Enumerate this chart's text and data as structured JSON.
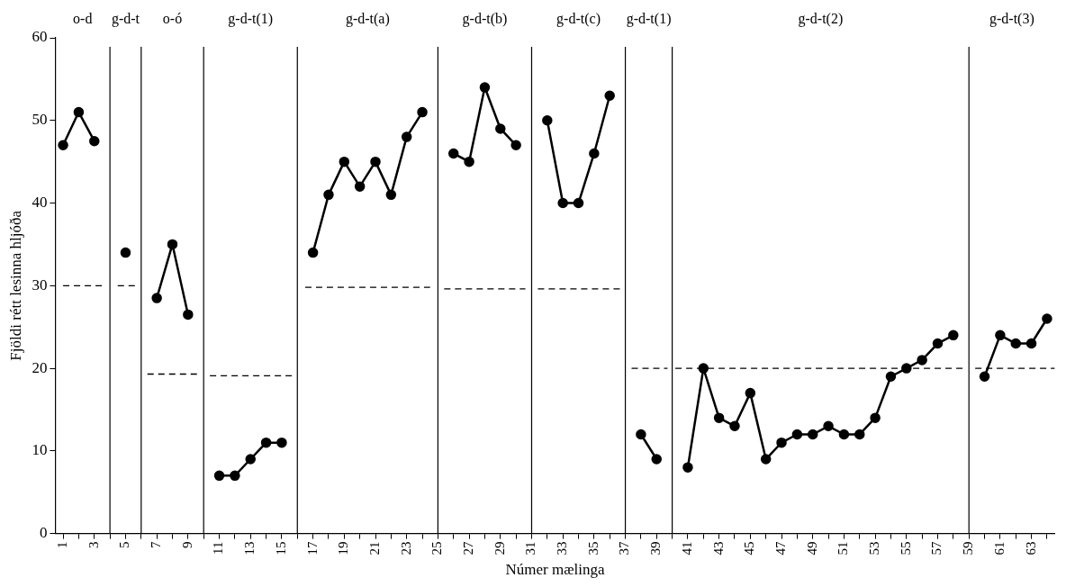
{
  "chart_data": {
    "type": "line",
    "xlabel": "Númer mælinga",
    "ylabel": "Fjöldi rétt lesinna hljóða",
    "xlim": [
      0.5,
      64.5
    ],
    "xticks": [
      1,
      {
        "value": 2,
        "label": null
      },
      3,
      {
        "value": 4,
        "label": null
      },
      5,
      {
        "value": 6,
        "label": null
      },
      7,
      {
        "value": 8,
        "label": null
      },
      9,
      {
        "value": 10,
        "label": null
      },
      11,
      {
        "value": 12,
        "label": null
      },
      13,
      {
        "value": 14,
        "label": null
      },
      15,
      {
        "value": 16,
        "label": null
      },
      17,
      {
        "value": 18,
        "label": null
      },
      19,
      {
        "value": 20,
        "label": null
      },
      21,
      {
        "value": 22,
        "label": null
      },
      23,
      {
        "value": 24,
        "label": null
      },
      25,
      {
        "value": 26,
        "label": null
      },
      27,
      {
        "value": 28,
        "label": null
      },
      29,
      {
        "value": 30,
        "label": null
      },
      31,
      {
        "value": 32,
        "label": null
      },
      33,
      {
        "value": 34,
        "label": null
      },
      35,
      {
        "value": 36,
        "label": null
      },
      37,
      {
        "value": 38,
        "label": null
      },
      39,
      {
        "value": 40,
        "label": null
      },
      41,
      {
        "value": 42,
        "label": null
      },
      43,
      {
        "value": 44,
        "label": null
      },
      45,
      {
        "value": 46,
        "label": null
      },
      47,
      {
        "value": 48,
        "label": null
      },
      49,
      {
        "value": 50,
        "label": null
      },
      51,
      {
        "value": 52,
        "label": null
      },
      53,
      {
        "value": 54,
        "label": null
      },
      55,
      {
        "value": 56,
        "label": null
      },
      57,
      {
        "value": 58,
        "label": null
      },
      59,
      {
        "value": 60,
        "label": null
      },
      61,
      {
        "value": 62,
        "label": null
      },
      63,
      {
        "value": 64,
        "label": null
      }
    ],
    "ylim": [
      0,
      60
    ],
    "yticks": [
      0,
      10,
      20,
      30,
      40,
      50,
      60
    ],
    "grid": false,
    "legend": false,
    "marker": "circle",
    "line_style": "solid",
    "series": [
      {
        "color": "#000000",
        "x": [
          1,
          2,
          3
        ],
        "values": [
          47,
          51,
          47.5
        ]
      },
      {
        "color": "#000000",
        "x": [
          5
        ],
        "values": [
          34
        ]
      },
      {
        "color": "#000000",
        "x": [
          7,
          8,
          9
        ],
        "values": [
          28.5,
          35,
          26.5
        ]
      },
      {
        "color": "#000000",
        "x": [
          11,
          12,
          13,
          14,
          15
        ],
        "values": [
          7,
          7,
          9,
          11,
          11
        ]
      },
      {
        "color": "#000000",
        "x": [
          17,
          18,
          19,
          20,
          21,
          22,
          23,
          24
        ],
        "values": [
          34,
          41,
          45,
          42,
          45,
          41,
          48,
          51
        ]
      },
      {
        "color": "#000000",
        "x": [
          26,
          27,
          28,
          29,
          30
        ],
        "values": [
          46,
          45,
          54,
          49,
          47
        ]
      },
      {
        "color": "#000000",
        "x": [
          32,
          33,
          34,
          35,
          36
        ],
        "values": [
          50,
          40,
          40,
          46,
          53
        ]
      },
      {
        "color": "#000000",
        "x": [
          38,
          39
        ],
        "values": [
          12,
          9
        ]
      },
      {
        "color": "#000000",
        "x": [
          41,
          42,
          43,
          44,
          45,
          46,
          47,
          48,
          49,
          50,
          51,
          52,
          53,
          54,
          55,
          56,
          57,
          58
        ],
        "values": [
          8,
          20,
          14,
          13,
          17,
          9,
          11,
          12,
          12,
          13,
          12,
          12,
          14,
          19,
          20,
          21,
          23,
          24
        ]
      },
      {
        "color": "#000000",
        "x": [
          60,
          61,
          62,
          63,
          64
        ],
        "values": [
          19,
          24,
          23,
          23,
          26
        ]
      },
      {
        "color": "#000000",
        "marker": "none",
        "line_style": "dashed",
        "x": [
          1,
          3.5
        ],
        "values": [
          30,
          30
        ]
      },
      {
        "color": "#000000",
        "marker": "none",
        "line_style": "dashed",
        "x": [
          4.5,
          5.8
        ],
        "values": [
          30,
          30
        ]
      },
      {
        "color": "#000000",
        "marker": "none",
        "line_style": "dashed",
        "x": [
          6.4,
          9.8
        ],
        "values": [
          19.3,
          19.3
        ]
      },
      {
        "color": "#000000",
        "marker": "none",
        "line_style": "dashed",
        "x": [
          10.4,
          15.8
        ],
        "values": [
          19.1,
          19.1
        ]
      },
      {
        "color": "#000000",
        "marker": "none",
        "line_style": "dashed",
        "x": [
          16.5,
          24.5
        ],
        "values": [
          29.8,
          29.8
        ]
      },
      {
        "color": "#000000",
        "marker": "none",
        "line_style": "dashed",
        "x": [
          25.4,
          30.6
        ],
        "values": [
          29.6,
          29.6
        ]
      },
      {
        "color": "#000000",
        "marker": "none",
        "line_style": "dashed",
        "x": [
          31.4,
          36.8
        ],
        "values": [
          29.6,
          29.6
        ]
      },
      {
        "color": "#000000",
        "marker": "none",
        "line_style": "dashed",
        "x": [
          37.4,
          39.7
        ],
        "values": [
          20,
          20
        ]
      },
      {
        "color": "#000000",
        "marker": "none",
        "line_style": "dashed",
        "x": [
          40.2,
          58.7
        ],
        "values": [
          20,
          20
        ]
      },
      {
        "color": "#000000",
        "marker": "none",
        "line_style": "dashed",
        "x": [
          59.4,
          64.5
        ],
        "values": [
          20,
          20
        ]
      }
    ],
    "ref_lines": [
      {
        "axis": "x",
        "value": 4,
        "color": "#000000"
      },
      {
        "axis": "x",
        "value": 6,
        "color": "#000000"
      },
      {
        "axis": "x",
        "value": 10,
        "color": "#000000"
      },
      {
        "axis": "x",
        "value": 16,
        "color": "#000000"
      },
      {
        "axis": "x",
        "value": 25,
        "color": "#000000"
      },
      {
        "axis": "x",
        "value": 31,
        "color": "#000000"
      },
      {
        "axis": "x",
        "value": 37,
        "color": "#000000"
      },
      {
        "axis": "x",
        "value": 40,
        "color": "#000000"
      },
      {
        "axis": "x",
        "value": 59,
        "color": "#000000"
      }
    ],
    "annotations": [
      "o-d",
      "g-d-t",
      "o-ó",
      "g-d-t(1)",
      "g-d-t(a)",
      "g-d-t(b)",
      "g-d-t(c)",
      "g-d-t(1)",
      "g-d-t(2)",
      "g-d-t(3)"
    ]
  }
}
